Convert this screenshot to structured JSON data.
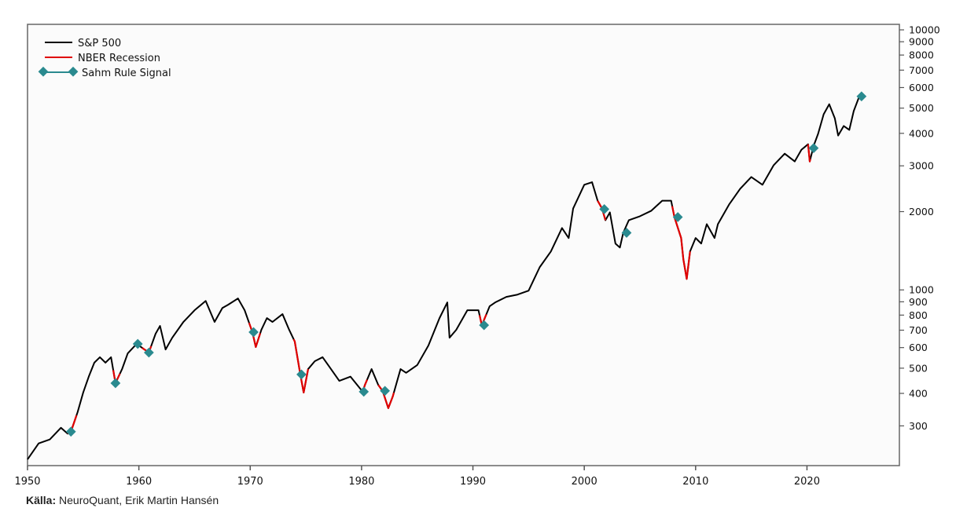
{
  "chart_data": {
    "type": "line",
    "title": "",
    "xlabel": "",
    "ylabel": "",
    "yscale": "log",
    "xlim": [
      1950,
      2028.3
    ],
    "ylim": [
      211,
      10500
    ],
    "x_ticks": [
      1950,
      1960,
      1970,
      1980,
      1990,
      2000,
      2010,
      2020
    ],
    "y_ticks": [
      300,
      400,
      500,
      600,
      700,
      800,
      900,
      1000,
      2000,
      3000,
      4000,
      5000,
      6000,
      7000,
      8000,
      9000,
      10000
    ],
    "y_axis_side": "right",
    "grid": false,
    "legend": {
      "placement": "top-left",
      "entries": [
        "S&P 500",
        "NBER Recession",
        "Sahm Rule Signal"
      ]
    },
    "colors": {
      "sp500": "#000000",
      "recession": "#e00000",
      "sahm": "#2a8a8f"
    },
    "series": [
      {
        "name": "S&P 500",
        "x": [
          1950.0,
          1951,
          1952,
          1953,
          1953.6,
          1953.9,
          1954.5,
          1955,
          1955.5,
          1956,
          1956.5,
          1957,
          1957.5,
          1957.9,
          1958.5,
          1959,
          1959.8,
          1960.5,
          1960.9,
          1961.5,
          1961.9,
          1962.4,
          1963,
          1964,
          1965,
          1966,
          1966.8,
          1967.5,
          1968,
          1968.9,
          1969.5,
          1970.2,
          1970.5,
          1971,
          1971.5,
          1972,
          1972.9,
          1973.5,
          1974,
          1974.5,
          1974.8,
          1975.2,
          1975.8,
          1976.5,
          1977,
          1978,
          1979,
          1980.1,
          1980.3,
          1980.9,
          1981.5,
          1981.9,
          1982.4,
          1982.8,
          1983.5,
          1984,
          1985,
          1986,
          1987,
          1987.7,
          1987.9,
          1988.5,
          1989.5,
          1990.5,
          1990.8,
          1991.5,
          1992,
          1993,
          1994,
          1995,
          1995.5,
          1996,
          1997,
          1998,
          1998.6,
          1999,
          2000,
          2000.7,
          2001.2,
          2001.6,
          2001.9,
          2002.3,
          2002.8,
          2003.2,
          2003.5,
          2004,
          2005,
          2006,
          2007,
          2007.8,
          2008.1,
          2008.7,
          2008.9,
          2009.2,
          2009.5,
          2010,
          2010.5,
          2011,
          2011.7,
          2012,
          2013,
          2014,
          2015,
          2016,
          2017,
          2018,
          2018.9,
          2019.5,
          2020.1,
          2020.25,
          2020.6,
          2021,
          2021.5,
          2022,
          2022.5,
          2022.8,
          2023.3,
          2023.8,
          2024.2,
          2024.7
        ],
        "values": [
          223,
          257,
          266,
          295,
          280,
          285,
          339,
          403,
          464,
          525,
          551,
          525,
          551,
          438,
          497,
          570,
          620,
          590,
          575,
          678,
          727,
          590,
          655,
          753,
          835,
          907,
          753,
          852,
          876,
          927,
          835,
          687,
          603,
          702,
          779,
          753,
          807,
          702,
          633,
          473,
          403,
          496,
          532,
          551,
          514,
          447,
          464,
          406,
          431,
          496,
          431,
          408,
          351,
          389,
          496,
          480,
          514,
          611,
          779,
          895,
          655,
          702,
          835,
          835,
          731,
          865,
          895,
          940,
          959,
          993,
          1102,
          1223,
          1405,
          1729,
          1583,
          2055,
          2536,
          2595,
          2203,
          2055,
          1853,
          1987,
          1507,
          1455,
          1658,
          1853,
          1920,
          2013,
          2203,
          2203,
          1903,
          1583,
          1310,
          1102,
          1405,
          1583,
          1507,
          1790,
          1583,
          1790,
          2128,
          2448,
          2717,
          2536,
          3012,
          3342,
          3119,
          3458,
          3632,
          3119,
          3581,
          3984,
          4736,
          5177,
          4571,
          3923,
          4268,
          4122,
          4875,
          5550
        ]
      },
      {
        "name": "NBER Recession",
        "periods": [
          [
            1953.6,
            1954.4
          ],
          [
            1957.7,
            1958.3
          ],
          [
            1960.3,
            1961.1
          ],
          [
            1969.9,
            1970.9
          ],
          [
            1973.9,
            1975.2
          ],
          [
            1980.0,
            1980.5
          ],
          [
            1981.5,
            1982.9
          ],
          [
            1990.6,
            1991.2
          ],
          [
            2001.2,
            2001.9
          ],
          [
            2007.9,
            2009.5
          ],
          [
            2020.1,
            2020.3
          ]
        ]
      },
      {
        "name": "Sahm Rule Signal",
        "x": [
          1953.9,
          1957.9,
          1959.9,
          1960.9,
          1970.3,
          1974.6,
          1980.2,
          1982.1,
          1991.0,
          2001.8,
          2003.8,
          2008.4,
          2020.6,
          2024.9
        ],
        "values": [
          285,
          438,
          620,
          574,
          688,
          473,
          406,
          409,
          732,
          2044,
          1658,
          1905,
          3510,
          5550
        ]
      }
    ]
  },
  "footer": {
    "source_label": "Källa:",
    "source_text": "NeuroQuant, Erik Martin Hansén"
  }
}
